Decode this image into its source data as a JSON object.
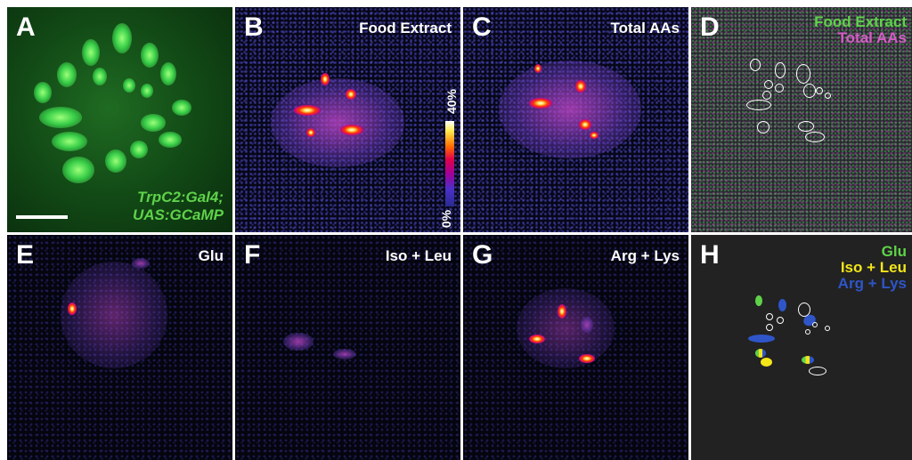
{
  "panels": {
    "a": {
      "letter": "A",
      "caption_line1": "TrpC2:Gal4;",
      "caption_line2": "UAS:GCaMP"
    },
    "b": {
      "letter": "B",
      "title": "Food Extract"
    },
    "c": {
      "letter": "C",
      "title": "Total AAs"
    },
    "d": {
      "letter": "D",
      "legend": [
        "Food Extract",
        "Total AAs"
      ]
    },
    "e": {
      "letter": "E",
      "title": "Glu"
    },
    "f": {
      "letter": "F",
      "title": "Iso + Leu"
    },
    "g": {
      "letter": "G",
      "title": "Arg + Lys"
    },
    "h": {
      "letter": "H",
      "legend": [
        "Glu",
        "Iso + Leu",
        "Arg + Lys"
      ]
    }
  },
  "colorbar": {
    "max_label": "40%",
    "min_label": "0%"
  },
  "colors": {
    "green": "#5fd24a",
    "magenta": "#d65cc8",
    "yellow": "#f2e51a",
    "blue": "#2f55c8",
    "text": "#ffffff"
  }
}
